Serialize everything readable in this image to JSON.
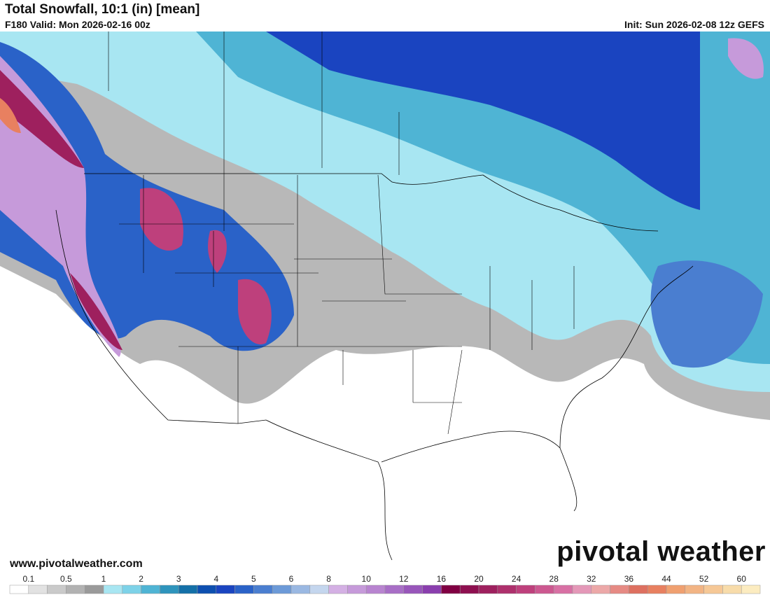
{
  "header": {
    "title": "Total Snowfall, 10:1 (in) [mean]",
    "valid": "F180 Valid: Mon 2026-02-16 00z",
    "init": "Init: Sun 2026-02-08 12z GEFS"
  },
  "footer": {
    "url": "www.pivotalweather.com",
    "brand": "pivotal weather"
  },
  "legend": {
    "labels": [
      "0.1",
      "0.5",
      "1",
      "2",
      "3",
      "4",
      "5",
      "6",
      "8",
      "10",
      "12",
      "16",
      "20",
      "24",
      "28",
      "32",
      "36",
      "44",
      "52",
      "60"
    ],
    "colors": [
      "#ffffff",
      "#e2e2e2",
      "#cacaca",
      "#b2b2b2",
      "#9a9a9a",
      "#a8e6f2",
      "#7dd2e8",
      "#4fb4d4",
      "#2e94bc",
      "#1470a8",
      "#0d4fb0",
      "#1a44c0",
      "#2a62c8",
      "#4a7ed0",
      "#6c9ad8",
      "#9ab8e2",
      "#c4d6ee",
      "#d4b0e4",
      "#c69ada",
      "#b884d0",
      "#a86ec6",
      "#9856ba",
      "#8a3eae",
      "#800042",
      "#8e1050",
      "#9e205e",
      "#ae306c",
      "#be407c",
      "#cc5890",
      "#d870a4",
      "#e498b8",
      "#eca8a8",
      "#e68a84",
      "#de7060",
      "#e88060",
      "#f0a070",
      "#f2b484",
      "#f6c896",
      "#f8dcaa",
      "#fcecc0"
    ]
  }
}
